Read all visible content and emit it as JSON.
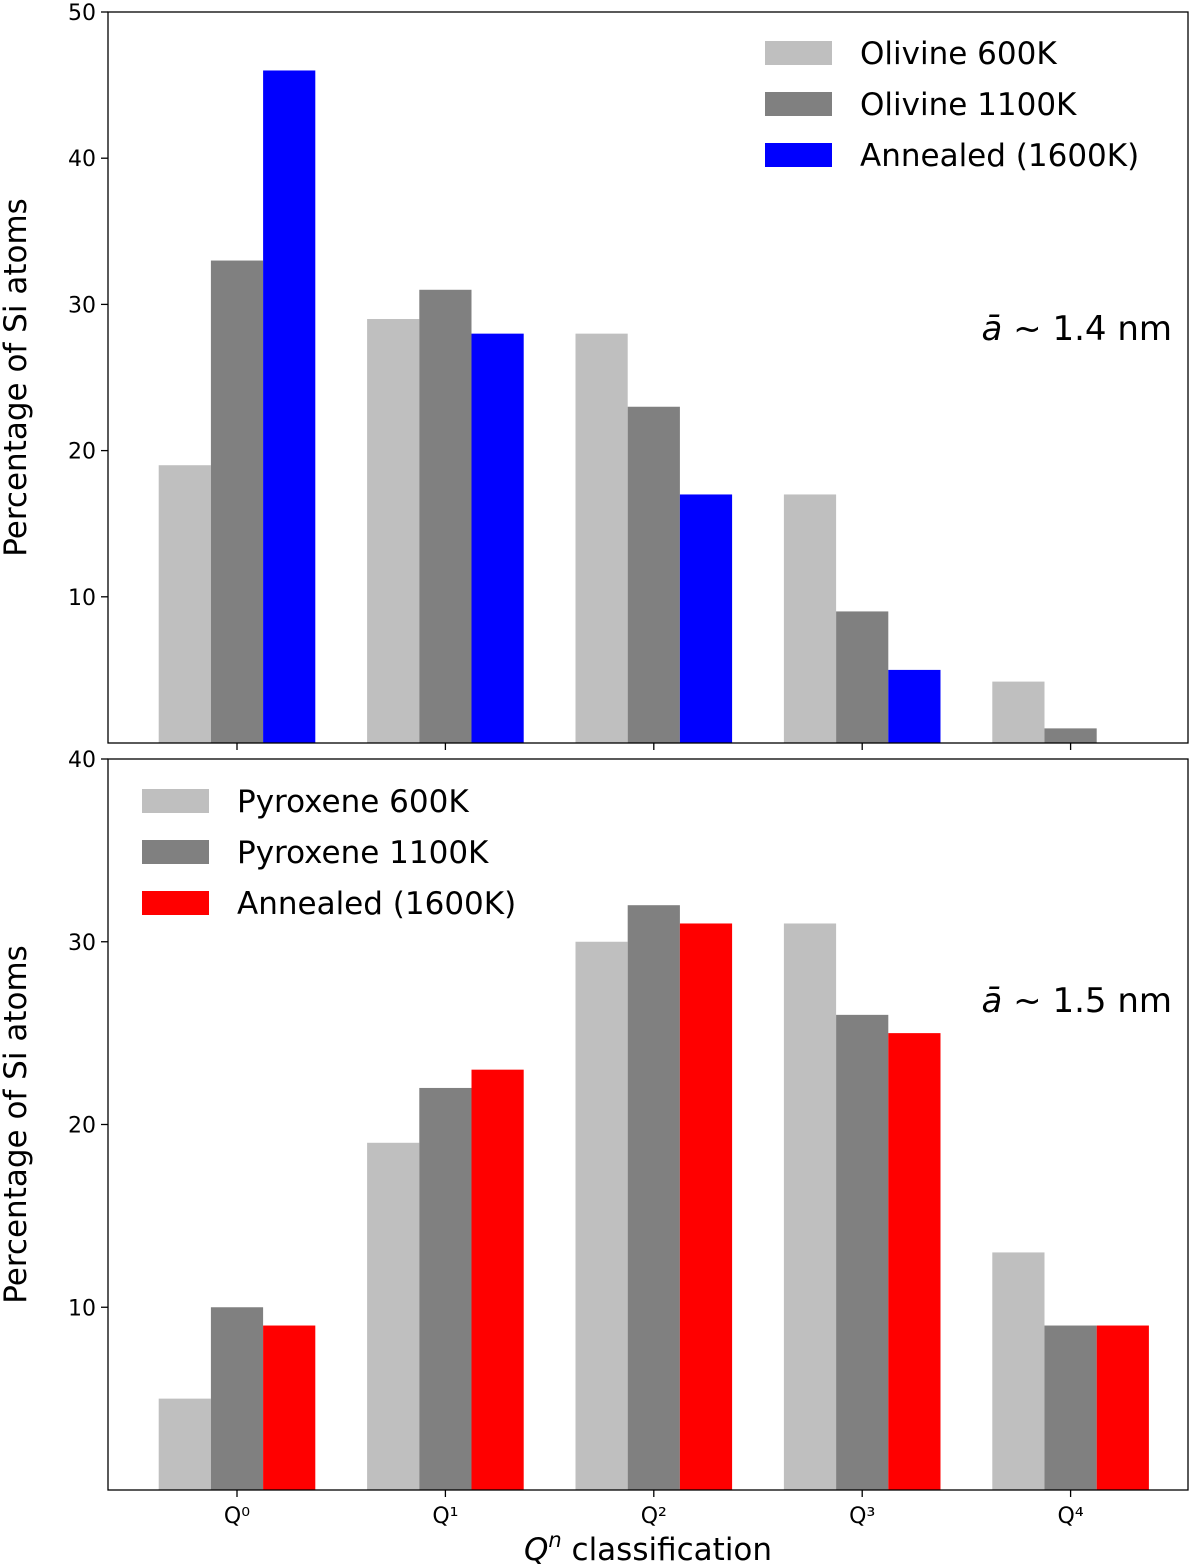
{
  "chart_data": [
    {
      "type": "bar",
      "categories": [
        "Q⁰",
        "Q¹",
        "Q²",
        "Q³",
        "Q⁴"
      ],
      "show_categories": false,
      "series": [
        {
          "name": "Olivine 600K",
          "color": "#bfbfbf",
          "values": [
            19,
            29,
            28,
            17,
            4.2
          ]
        },
        {
          "name": "Olivine 1100K",
          "color": "#808080",
          "values": [
            33,
            31,
            23,
            9,
            1
          ]
        },
        {
          "name": "Annealed (1600K)",
          "color": "#0000ff",
          "values": [
            46,
            28,
            17,
            5,
            0
          ]
        }
      ],
      "ylabel": "Percentage of Si atoms",
      "xlabel": "",
      "ylim": [
        0,
        50
      ],
      "yticks": [
        10,
        20,
        30,
        40,
        50
      ],
      "annotation": {
        "prefix": "ā",
        "text": " ~ 1.4 nm"
      },
      "legend_position": "top-right",
      "grid": false
    },
    {
      "type": "bar",
      "categories": [
        "Q⁰",
        "Q¹",
        "Q²",
        "Q³",
        "Q⁴"
      ],
      "show_categories": true,
      "series": [
        {
          "name": "Pyroxene 600K",
          "color": "#bfbfbf",
          "values": [
            5,
            19,
            30,
            31,
            13
          ]
        },
        {
          "name": "Pyroxene 1100K",
          "color": "#808080",
          "values": [
            10,
            22,
            32,
            26,
            9
          ]
        },
        {
          "name": "Annealed (1600K)",
          "color": "#ff0000",
          "values": [
            9,
            23,
            31,
            25,
            9
          ]
        }
      ],
      "ylabel": "Percentage of Si atoms",
      "xlabel": {
        "prefix": "Q",
        "sup": "n",
        "text": " classification"
      },
      "ylim": [
        0,
        40
      ],
      "yticks": [
        10,
        20,
        30,
        40
      ],
      "annotation": {
        "prefix": "ā",
        "text": " ~ 1.5 nm"
      },
      "legend_position": "top-left",
      "grid": false
    }
  ]
}
